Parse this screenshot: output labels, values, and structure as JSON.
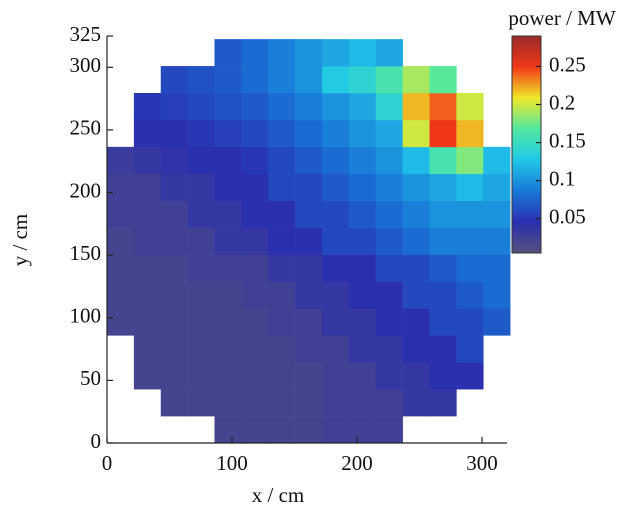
{
  "chart_data": {
    "type": "heatmap",
    "xlabel": "x / cm",
    "ylabel": "y / cm",
    "colorbar_label": "power / MW",
    "xbins": [
      0,
      21.5,
      43,
      64.5,
      86,
      107.5,
      129,
      150.5,
      172,
      193.5,
      215,
      236.5,
      258,
      279.5,
      301,
      322.5
    ],
    "ybins": [
      0,
      21.5,
      43,
      64.5,
      86,
      107.5,
      129,
      150.5,
      172,
      193.5,
      215,
      236.5,
      258,
      279.5,
      301,
      322.5
    ],
    "z": [
      [
        null,
        null,
        null,
        null,
        0.02,
        0.02,
        0.02,
        0.02,
        0.025,
        0.025,
        0.025,
        null,
        null,
        null,
        null
      ],
      [
        null,
        null,
        0.02,
        0.02,
        0.02,
        0.02,
        0.02,
        0.02,
        0.025,
        0.025,
        0.025,
        0.035,
        0.035,
        null,
        null
      ],
      [
        null,
        0.02,
        0.02,
        0.02,
        0.02,
        0.02,
        0.02,
        0.02,
        0.025,
        0.025,
        0.035,
        0.035,
        0.045,
        0.045,
        null
      ],
      [
        null,
        0.02,
        0.02,
        0.02,
        0.02,
        0.02,
        0.02,
        0.025,
        0.025,
        0.035,
        0.035,
        0.045,
        0.045,
        0.06,
        null
      ],
      [
        0.02,
        0.02,
        0.02,
        0.02,
        0.02,
        0.02,
        0.025,
        0.025,
        0.035,
        0.035,
        0.045,
        0.045,
        0.06,
        0.06,
        0.07
      ],
      [
        0.02,
        0.02,
        0.02,
        0.02,
        0.02,
        0.025,
        0.025,
        0.035,
        0.035,
        0.045,
        0.045,
        0.06,
        0.06,
        0.07,
        0.08
      ],
      [
        0.02,
        0.02,
        0.02,
        0.025,
        0.025,
        0.025,
        0.035,
        0.035,
        0.045,
        0.045,
        0.06,
        0.06,
        0.07,
        0.08,
        0.08
      ],
      [
        0.02,
        0.025,
        0.025,
        0.025,
        0.035,
        0.035,
        0.045,
        0.045,
        0.06,
        0.06,
        0.07,
        0.08,
        0.09,
        0.09,
        0.09
      ],
      [
        0.025,
        0.025,
        0.025,
        0.035,
        0.035,
        0.045,
        0.045,
        0.06,
        0.06,
        0.07,
        0.08,
        0.09,
        0.1,
        0.1,
        0.1
      ],
      [
        0.025,
        0.025,
        0.035,
        0.035,
        0.045,
        0.045,
        0.06,
        0.06,
        0.07,
        0.08,
        0.09,
        0.1,
        0.11,
        0.12,
        0.11
      ],
      [
        0.03,
        0.035,
        0.04,
        0.045,
        0.045,
        0.05,
        0.06,
        0.07,
        0.08,
        0.09,
        0.1,
        0.12,
        0.16,
        0.18,
        0.12
      ],
      [
        null,
        0.045,
        0.045,
        0.05,
        0.055,
        0.06,
        0.07,
        0.08,
        0.09,
        0.1,
        0.11,
        0.2,
        0.25,
        0.22,
        null
      ],
      [
        null,
        0.05,
        0.055,
        0.06,
        0.065,
        0.07,
        0.08,
        0.09,
        0.1,
        0.11,
        0.14,
        0.22,
        0.24,
        0.2,
        null
      ],
      [
        null,
        null,
        0.06,
        0.065,
        0.07,
        0.08,
        0.09,
        0.1,
        0.13,
        0.14,
        0.16,
        0.19,
        0.17,
        null,
        null
      ],
      [
        null,
        null,
        null,
        null,
        0.07,
        0.08,
        0.09,
        0.1,
        0.11,
        0.12,
        0.11,
        null,
        null,
        null,
        null
      ]
    ],
    "xlim": [
      0,
      320
    ],
    "xticks": [
      0,
      100,
      200,
      300
    ],
    "ylim": [
      0,
      325
    ],
    "yticks": [
      0,
      50,
      100,
      150,
      200,
      250,
      300,
      325
    ],
    "zlim": [
      0.005,
      0.29
    ],
    "zticks": [
      0.05,
      0.1,
      0.15,
      0.2,
      0.25
    ],
    "colormap": [
      "#55507a",
      "#2a2fb0",
      "#1878d8",
      "#20c8e8",
      "#50e8a0",
      "#f0e828",
      "#f03818",
      "#9a2a2a"
    ]
  }
}
